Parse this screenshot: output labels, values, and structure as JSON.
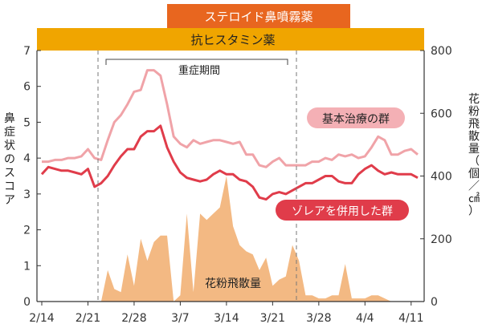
{
  "chart_data": {
    "type": "line",
    "x_ticks": [
      "2/14",
      "2/21",
      "2/28",
      "3/7",
      "3/14",
      "3/21",
      "3/28",
      "4/4",
      "4/11"
    ],
    "y_left": {
      "label": "鼻症状のスコア",
      "ylim": [
        0,
        7
      ],
      "ticks": [
        0,
        1,
        2,
        3,
        4,
        5,
        6,
        7
      ]
    },
    "y_right": {
      "label": "花粉飛散量（個／㎠）",
      "ylim": [
        0,
        800
      ],
      "ticks": [
        0,
        200,
        400,
        600,
        800
      ]
    },
    "grid": false,
    "days": [
      "2/14",
      "2/15",
      "2/16",
      "2/17",
      "2/18",
      "2/19",
      "2/20",
      "2/21",
      "2/22",
      "2/23",
      "2/24",
      "2/25",
      "2/26",
      "2/27",
      "2/28",
      "3/1",
      "3/2",
      "3/3",
      "3/4",
      "3/5",
      "3/6",
      "3/7",
      "3/8",
      "3/9",
      "3/10",
      "3/11",
      "3/12",
      "3/13",
      "3/14",
      "3/15",
      "3/16",
      "3/17",
      "3/18",
      "3/19",
      "3/20",
      "3/21",
      "3/22",
      "3/23",
      "3/24",
      "3/25",
      "3/26",
      "3/27",
      "3/28",
      "3/29",
      "3/30",
      "3/31",
      "4/1",
      "4/2",
      "4/3",
      "4/4",
      "4/5",
      "4/6",
      "4/7",
      "4/8",
      "4/9",
      "4/10",
      "4/11",
      "4/12"
    ],
    "series": [
      {
        "name": "基本治療の群",
        "axis": "left",
        "color": "#f0a3a8",
        "values": [
          3.9,
          3.9,
          3.95,
          3.95,
          4.0,
          4.0,
          4.05,
          4.25,
          4.0,
          3.95,
          4.5,
          5.0,
          5.2,
          5.5,
          5.85,
          5.9,
          6.45,
          6.45,
          6.3,
          5.5,
          4.6,
          4.4,
          4.3,
          4.5,
          4.4,
          4.45,
          4.5,
          4.5,
          4.45,
          4.4,
          4.45,
          4.1,
          4.1,
          3.8,
          3.75,
          3.9,
          4.0,
          3.8,
          3.8,
          3.8,
          3.8,
          3.9,
          3.9,
          4.0,
          3.95,
          4.1,
          4.05,
          4.1,
          4.0,
          4.05,
          4.3,
          4.6,
          4.5,
          4.1,
          4.1,
          4.2,
          4.25,
          4.1
        ]
      },
      {
        "name": "ゾレアを併用した群",
        "axis": "left",
        "color": "#e03c4a",
        "values": [
          3.55,
          3.75,
          3.7,
          3.65,
          3.65,
          3.6,
          3.55,
          3.7,
          3.2,
          3.3,
          3.5,
          3.8,
          4.05,
          4.25,
          4.25,
          4.6,
          4.75,
          4.75,
          4.9,
          4.3,
          3.9,
          3.6,
          3.45,
          3.4,
          3.35,
          3.4,
          3.55,
          3.65,
          3.55,
          3.55,
          3.4,
          3.35,
          3.2,
          2.9,
          2.85,
          3.0,
          3.05,
          3.0,
          3.1,
          3.2,
          3.3,
          3.3,
          3.4,
          3.5,
          3.5,
          3.35,
          3.3,
          3.3,
          3.55,
          3.7,
          3.8,
          3.65,
          3.55,
          3.6,
          3.55,
          3.55,
          3.55,
          3.45
        ]
      },
      {
        "name": "花粉飛散量",
        "axis": "right",
        "type": "area",
        "color": "#f3b983",
        "values": [
          0,
          0,
          0,
          0,
          0,
          0,
          0,
          0,
          0,
          0,
          100,
          40,
          30,
          150,
          50,
          200,
          130,
          190,
          210,
          210,
          0,
          20,
          280,
          30,
          280,
          260,
          280,
          300,
          400,
          240,
          180,
          160,
          150,
          100,
          140,
          50,
          70,
          80,
          180,
          130,
          20,
          20,
          10,
          10,
          20,
          20,
          120,
          10,
          10,
          10,
          20,
          20,
          10,
          0,
          0,
          0,
          0,
          0
        ]
      }
    ],
    "annotations": {
      "top_bar": "ステロイド鼻噴霧薬",
      "second_bar": "抗ヒスタミン薬",
      "severe_period": "重症期間",
      "label_base": "基本治療の群",
      "label_xolair": "ゾレアを併用した群",
      "label_pollen": "花粉飛散量"
    },
    "colors": {
      "top_bar": "#e8661f",
      "second_bar": "#f0a500",
      "base_label_bg": "#f4b0b5",
      "xolair_label_bg": "#e03c4a"
    }
  }
}
